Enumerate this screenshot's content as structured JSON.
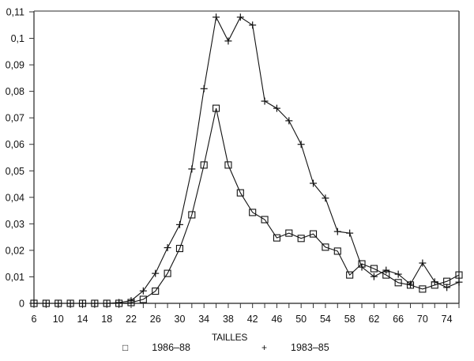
{
  "chart_data": {
    "type": "line",
    "title": "",
    "xlabel": "TAILLES",
    "ylabel": "",
    "xlim": [
      6,
      76
    ],
    "ylim": [
      0,
      0.11
    ],
    "grid": false,
    "legend_position": "bottom",
    "x_tick_labels": [
      "6",
      "10",
      "14",
      "18",
      "22",
      "26",
      "30",
      "34",
      "38",
      "42",
      "46",
      "50",
      "54",
      "58",
      "62",
      "66",
      "70",
      "74"
    ],
    "y_tick_labels": [
      "0",
      "0,01",
      "0,02",
      "0,03",
      "0,04",
      "0,05",
      "0,06",
      "0,07",
      "0,08",
      "0,09",
      "0,1",
      "0,11"
    ],
    "x": [
      6,
      8,
      10,
      12,
      14,
      16,
      18,
      20,
      22,
      24,
      26,
      28,
      30,
      32,
      34,
      36,
      38,
      40,
      42,
      44,
      46,
      48,
      50,
      52,
      54,
      56,
      58,
      60,
      62,
      64,
      66,
      68,
      70,
      72,
      74,
      76
    ],
    "series": [
      {
        "name": "1986-88",
        "marker": "square",
        "values": [
          0,
          0,
          0,
          0,
          0,
          0,
          0,
          0,
          0.0003,
          0.0015,
          0.0046,
          0.0113,
          0.0207,
          0.0334,
          0.0522,
          0.0736,
          0.0522,
          0.0417,
          0.0343,
          0.0316,
          0.0247,
          0.0265,
          0.0245,
          0.0262,
          0.0212,
          0.0197,
          0.0107,
          0.0149,
          0.0131,
          0.0107,
          0.0078,
          0.0069,
          0.0054,
          0.0069,
          0.0083,
          0.0107
        ]
      },
      {
        "name": "1983-85",
        "marker": "plus",
        "values": [
          0,
          0,
          0,
          0,
          0,
          0,
          0,
          0.0003,
          0.001,
          0.0047,
          0.0113,
          0.021,
          0.0297,
          0.0507,
          0.081,
          0.108,
          0.099,
          0.108,
          0.105,
          0.0763,
          0.0736,
          0.0689,
          0.06,
          0.0453,
          0.0397,
          0.0271,
          0.0265,
          0.0137,
          0.0101,
          0.0125,
          0.011,
          0.0072,
          0.0152,
          0.0081,
          0.006,
          0.008
        ]
      }
    ]
  },
  "legend": {
    "items": [
      {
        "symbol": "□",
        "label": "1986–88"
      },
      {
        "symbol": "+",
        "label": "1983–85"
      }
    ]
  },
  "axes": {
    "xlabel": "TAILLES"
  }
}
